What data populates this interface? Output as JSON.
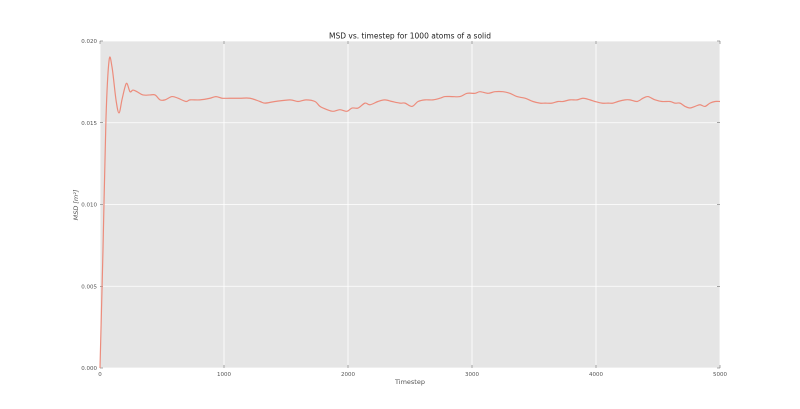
{
  "chart_data": {
    "type": "line",
    "title": "MSD vs. timestep for 1000 atoms of a solid",
    "xlabel": "Timestep",
    "ylabel": "MSD [m²]",
    "xlim": [
      0,
      5000
    ],
    "ylim": [
      0,
      0.02
    ],
    "xticks": [
      0,
      1000,
      2000,
      3000,
      4000,
      5000
    ],
    "xtick_labels": [
      "0",
      "1000",
      "2000",
      "3000",
      "4000",
      "5000"
    ],
    "yticks": [
      0,
      0.005,
      0.01,
      0.015,
      0.02
    ],
    "ytick_labels": [
      "0.000",
      "0.005",
      "0.010",
      "0.015",
      "0.020"
    ],
    "grid": true,
    "style": "ggplot",
    "colors": {
      "background": "#e5e5e5",
      "grid": "#ffffff",
      "line": "#ec8c7c"
    },
    "series": [
      {
        "x": [
          0,
          24,
          48,
          73,
          97,
          129,
          153,
          177,
          202,
          218,
          242,
          266,
          298,
          347,
          403,
          444,
          484,
          524,
          581,
          629,
          694,
          726,
          806,
          887,
          935,
          984,
          1048,
          1129,
          1210,
          1290,
          1331,
          1411,
          1532,
          1597,
          1661,
          1734,
          1774,
          1831,
          1879,
          1935,
          1992,
          2032,
          2081,
          2137,
          2177,
          2242,
          2298,
          2355,
          2419,
          2460,
          2516,
          2565,
          2621,
          2685,
          2742,
          2782,
          2839,
          2903,
          2960,
          3024,
          3065,
          3129,
          3185,
          3250,
          3306,
          3363,
          3427,
          3492,
          3548,
          3589,
          3645,
          3694,
          3734,
          3790,
          3847,
          3895,
          3952,
          3992,
          4048,
          4097,
          4137,
          4177,
          4234,
          4274,
          4331,
          4379,
          4419,
          4476,
          4532,
          4597,
          4637,
          4677,
          4718,
          4758,
          4798,
          4839,
          4879,
          4919,
          4960,
          5000
        ],
        "y": [
          0,
          0.0072,
          0.0152,
          0.0188,
          0.0184,
          0.0164,
          0.0156,
          0.0164,
          0.0172,
          0.0174,
          0.0169,
          0.017,
          0.0169,
          0.0167,
          0.0167,
          0.0167,
          0.0164,
          0.0164,
          0.0166,
          0.0165,
          0.0163,
          0.0164,
          0.0164,
          0.0165,
          0.0166,
          0.0165,
          0.0165,
          0.0165,
          0.0165,
          0.0163,
          0.0162,
          0.0163,
          0.0164,
          0.0163,
          0.0164,
          0.0163,
          0.016,
          0.0158,
          0.0157,
          0.0158,
          0.0157,
          0.0159,
          0.0159,
          0.0162,
          0.0161,
          0.0163,
          0.0164,
          0.0163,
          0.0162,
          0.0162,
          0.016,
          0.0163,
          0.0164,
          0.0164,
          0.0165,
          0.0166,
          0.0166,
          0.0166,
          0.0168,
          0.0168,
          0.0169,
          0.0168,
          0.0169,
          0.0169,
          0.0168,
          0.0166,
          0.0165,
          0.0163,
          0.0162,
          0.0162,
          0.0162,
          0.0163,
          0.0163,
          0.0164,
          0.0164,
          0.0165,
          0.0164,
          0.0163,
          0.0162,
          0.0162,
          0.0162,
          0.0163,
          0.0164,
          0.0164,
          0.0163,
          0.0165,
          0.0166,
          0.0164,
          0.0163,
          0.0163,
          0.0162,
          0.0162,
          0.016,
          0.0159,
          0.016,
          0.0161,
          0.016,
          0.0162,
          0.0163,
          0.0163
        ]
      }
    ]
  }
}
